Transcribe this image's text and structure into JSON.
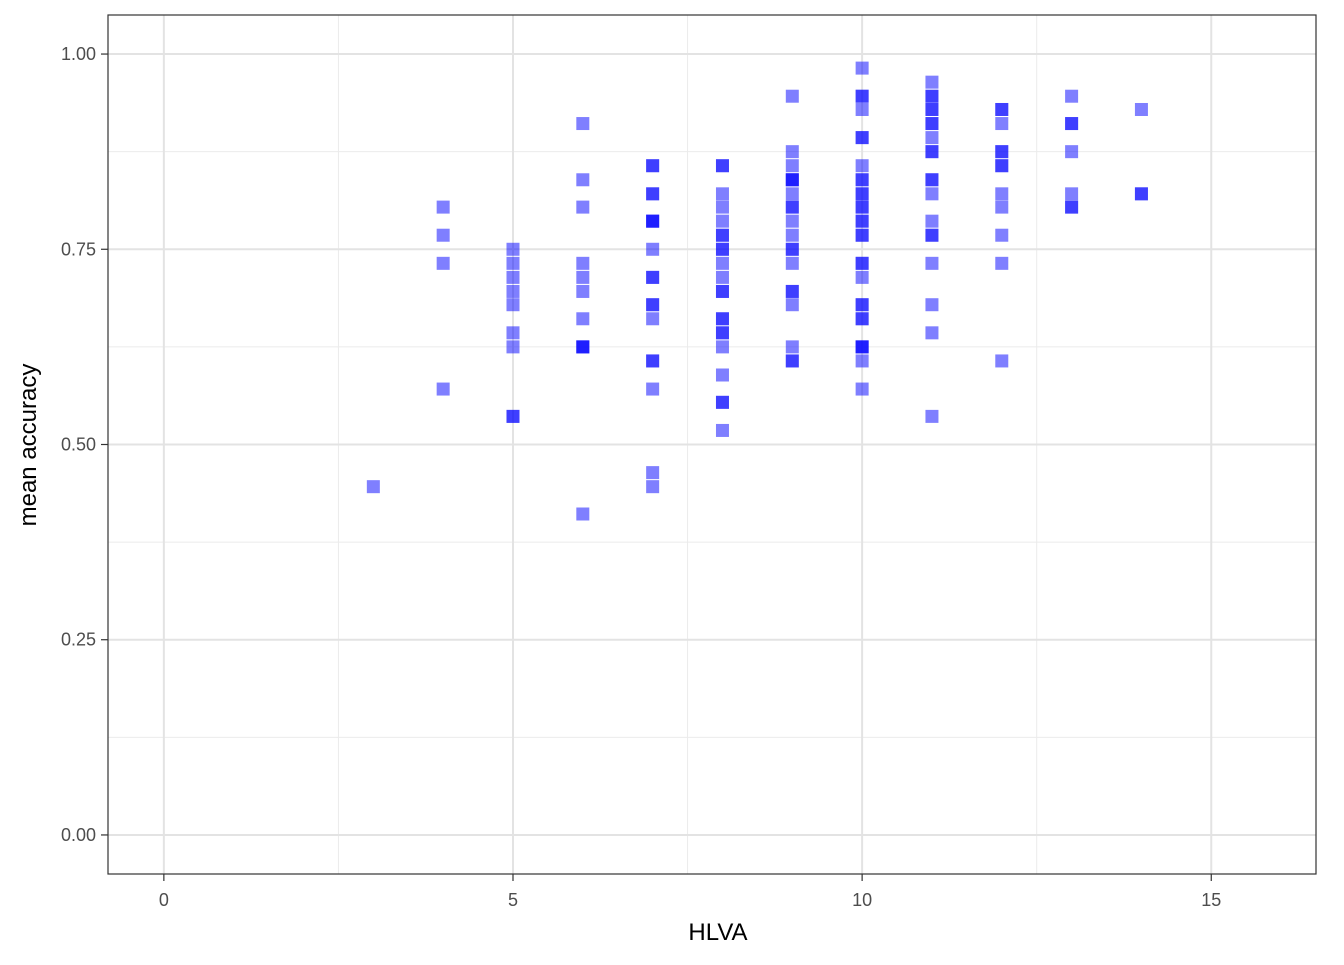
{
  "chart_data": {
    "type": "scatter",
    "title": "",
    "xlabel": "HLVA",
    "ylabel": "mean accuracy",
    "xlim": [
      -0.8,
      16.5
    ],
    "ylim": [
      -0.05,
      1.05
    ],
    "x_ticks": [
      0,
      5,
      10,
      15
    ],
    "x_tick_labels": [
      "0",
      "5",
      "10",
      "15"
    ],
    "y_ticks": [
      0,
      0.25,
      0.5,
      0.75,
      1.0
    ],
    "y_tick_labels": [
      "0.00",
      "0.25",
      "0.50",
      "0.75",
      "1.00"
    ],
    "grid": true,
    "legend": "none",
    "marker": "square",
    "point_color": "#0000ff",
    "point_opacity": 0.5,
    "points": [
      {
        "x": 3,
        "y": 0.446
      },
      {
        "x": 4,
        "y": 0.804
      },
      {
        "x": 4,
        "y": 0.768
      },
      {
        "x": 4,
        "y": 0.732
      },
      {
        "x": 4,
        "y": 0.571
      },
      {
        "x": 5,
        "y": 0.75
      },
      {
        "x": 5,
        "y": 0.732
      },
      {
        "x": 5,
        "y": 0.714
      },
      {
        "x": 5,
        "y": 0.696
      },
      {
        "x": 5,
        "y": 0.679
      },
      {
        "x": 5,
        "y": 0.643
      },
      {
        "x": 5,
        "y": 0.625
      },
      {
        "x": 5,
        "y": 0.536
      },
      {
        "x": 5,
        "y": 0.536
      },
      {
        "x": 6,
        "y": 0.911
      },
      {
        "x": 6,
        "y": 0.839
      },
      {
        "x": 6,
        "y": 0.804
      },
      {
        "x": 6,
        "y": 0.732
      },
      {
        "x": 6,
        "y": 0.714
      },
      {
        "x": 6,
        "y": 0.696
      },
      {
        "x": 6,
        "y": 0.661
      },
      {
        "x": 6,
        "y": 0.625
      },
      {
        "x": 6,
        "y": 0.625
      },
      {
        "x": 6,
        "y": 0.625
      },
      {
        "x": 6,
        "y": 0.411
      },
      {
        "x": 7,
        "y": 0.857
      },
      {
        "x": 7,
        "y": 0.857
      },
      {
        "x": 7,
        "y": 0.821
      },
      {
        "x": 7,
        "y": 0.821
      },
      {
        "x": 7,
        "y": 0.786
      },
      {
        "x": 7,
        "y": 0.786
      },
      {
        "x": 7,
        "y": 0.786
      },
      {
        "x": 7,
        "y": 0.75
      },
      {
        "x": 7,
        "y": 0.714
      },
      {
        "x": 7,
        "y": 0.714
      },
      {
        "x": 7,
        "y": 0.679
      },
      {
        "x": 7,
        "y": 0.679
      },
      {
        "x": 7,
        "y": 0.661
      },
      {
        "x": 7,
        "y": 0.607
      },
      {
        "x": 7,
        "y": 0.607
      },
      {
        "x": 7,
        "y": 0.571
      },
      {
        "x": 7,
        "y": 0.464
      },
      {
        "x": 7,
        "y": 0.446
      },
      {
        "x": 8,
        "y": 0.857
      },
      {
        "x": 8,
        "y": 0.857
      },
      {
        "x": 8,
        "y": 0.821
      },
      {
        "x": 8,
        "y": 0.804
      },
      {
        "x": 8,
        "y": 0.786
      },
      {
        "x": 8,
        "y": 0.768
      },
      {
        "x": 8,
        "y": 0.768
      },
      {
        "x": 8,
        "y": 0.75
      },
      {
        "x": 8,
        "y": 0.75
      },
      {
        "x": 8,
        "y": 0.732
      },
      {
        "x": 8,
        "y": 0.714
      },
      {
        "x": 8,
        "y": 0.696
      },
      {
        "x": 8,
        "y": 0.696
      },
      {
        "x": 8,
        "y": 0.661
      },
      {
        "x": 8,
        "y": 0.661
      },
      {
        "x": 8,
        "y": 0.643
      },
      {
        "x": 8,
        "y": 0.643
      },
      {
        "x": 8,
        "y": 0.625
      },
      {
        "x": 8,
        "y": 0.589
      },
      {
        "x": 8,
        "y": 0.554
      },
      {
        "x": 8,
        "y": 0.554
      },
      {
        "x": 8,
        "y": 0.518
      },
      {
        "x": 9,
        "y": 0.946
      },
      {
        "x": 9,
        "y": 0.875
      },
      {
        "x": 9,
        "y": 0.857
      },
      {
        "x": 9,
        "y": 0.839
      },
      {
        "x": 9,
        "y": 0.839
      },
      {
        "x": 9,
        "y": 0.839
      },
      {
        "x": 9,
        "y": 0.821
      },
      {
        "x": 9,
        "y": 0.804
      },
      {
        "x": 9,
        "y": 0.804
      },
      {
        "x": 9,
        "y": 0.786
      },
      {
        "x": 9,
        "y": 0.768
      },
      {
        "x": 9,
        "y": 0.75
      },
      {
        "x": 9,
        "y": 0.75
      },
      {
        "x": 9,
        "y": 0.732
      },
      {
        "x": 9,
        "y": 0.696
      },
      {
        "x": 9,
        "y": 0.696
      },
      {
        "x": 9,
        "y": 0.679
      },
      {
        "x": 9,
        "y": 0.625
      },
      {
        "x": 9,
        "y": 0.607
      },
      {
        "x": 9,
        "y": 0.607
      },
      {
        "x": 10,
        "y": 0.982
      },
      {
        "x": 10,
        "y": 0.946
      },
      {
        "x": 10,
        "y": 0.946
      },
      {
        "x": 10,
        "y": 0.929
      },
      {
        "x": 10,
        "y": 0.893
      },
      {
        "x": 10,
        "y": 0.893
      },
      {
        "x": 10,
        "y": 0.857
      },
      {
        "x": 10,
        "y": 0.839
      },
      {
        "x": 10,
        "y": 0.839
      },
      {
        "x": 10,
        "y": 0.821
      },
      {
        "x": 10,
        "y": 0.821
      },
      {
        "x": 10,
        "y": 0.804
      },
      {
        "x": 10,
        "y": 0.804
      },
      {
        "x": 10,
        "y": 0.786
      },
      {
        "x": 10,
        "y": 0.786
      },
      {
        "x": 10,
        "y": 0.768
      },
      {
        "x": 10,
        "y": 0.768
      },
      {
        "x": 10,
        "y": 0.732
      },
      {
        "x": 10,
        "y": 0.732
      },
      {
        "x": 10,
        "y": 0.714
      },
      {
        "x": 10,
        "y": 0.679
      },
      {
        "x": 10,
        "y": 0.679
      },
      {
        "x": 10,
        "y": 0.661
      },
      {
        "x": 10,
        "y": 0.661
      },
      {
        "x": 10,
        "y": 0.625
      },
      {
        "x": 10,
        "y": 0.625
      },
      {
        "x": 10,
        "y": 0.625
      },
      {
        "x": 10,
        "y": 0.607
      },
      {
        "x": 10,
        "y": 0.571
      },
      {
        "x": 11,
        "y": 0.964
      },
      {
        "x": 11,
        "y": 0.946
      },
      {
        "x": 11,
        "y": 0.946
      },
      {
        "x": 11,
        "y": 0.929
      },
      {
        "x": 11,
        "y": 0.929
      },
      {
        "x": 11,
        "y": 0.911
      },
      {
        "x": 11,
        "y": 0.911
      },
      {
        "x": 11,
        "y": 0.893
      },
      {
        "x": 11,
        "y": 0.875
      },
      {
        "x": 11,
        "y": 0.875
      },
      {
        "x": 11,
        "y": 0.839
      },
      {
        "x": 11,
        "y": 0.839
      },
      {
        "x": 11,
        "y": 0.821
      },
      {
        "x": 11,
        "y": 0.786
      },
      {
        "x": 11,
        "y": 0.768
      },
      {
        "x": 11,
        "y": 0.768
      },
      {
        "x": 11,
        "y": 0.732
      },
      {
        "x": 11,
        "y": 0.679
      },
      {
        "x": 11,
        "y": 0.643
      },
      {
        "x": 11,
        "y": 0.536
      },
      {
        "x": 12,
        "y": 0.929
      },
      {
        "x": 12,
        "y": 0.929
      },
      {
        "x": 12,
        "y": 0.911
      },
      {
        "x": 12,
        "y": 0.875
      },
      {
        "x": 12,
        "y": 0.875
      },
      {
        "x": 12,
        "y": 0.857
      },
      {
        "x": 12,
        "y": 0.857
      },
      {
        "x": 12,
        "y": 0.821
      },
      {
        "x": 12,
        "y": 0.804
      },
      {
        "x": 12,
        "y": 0.768
      },
      {
        "x": 12,
        "y": 0.732
      },
      {
        "x": 12,
        "y": 0.607
      },
      {
        "x": 13,
        "y": 0.946
      },
      {
        "x": 13,
        "y": 0.911
      },
      {
        "x": 13,
        "y": 0.911
      },
      {
        "x": 13,
        "y": 0.875
      },
      {
        "x": 13,
        "y": 0.821
      },
      {
        "x": 13,
        "y": 0.804
      },
      {
        "x": 13,
        "y": 0.804
      },
      {
        "x": 14,
        "y": 0.929
      },
      {
        "x": 14,
        "y": 0.821
      },
      {
        "x": 14,
        "y": 0.821
      }
    ]
  }
}
